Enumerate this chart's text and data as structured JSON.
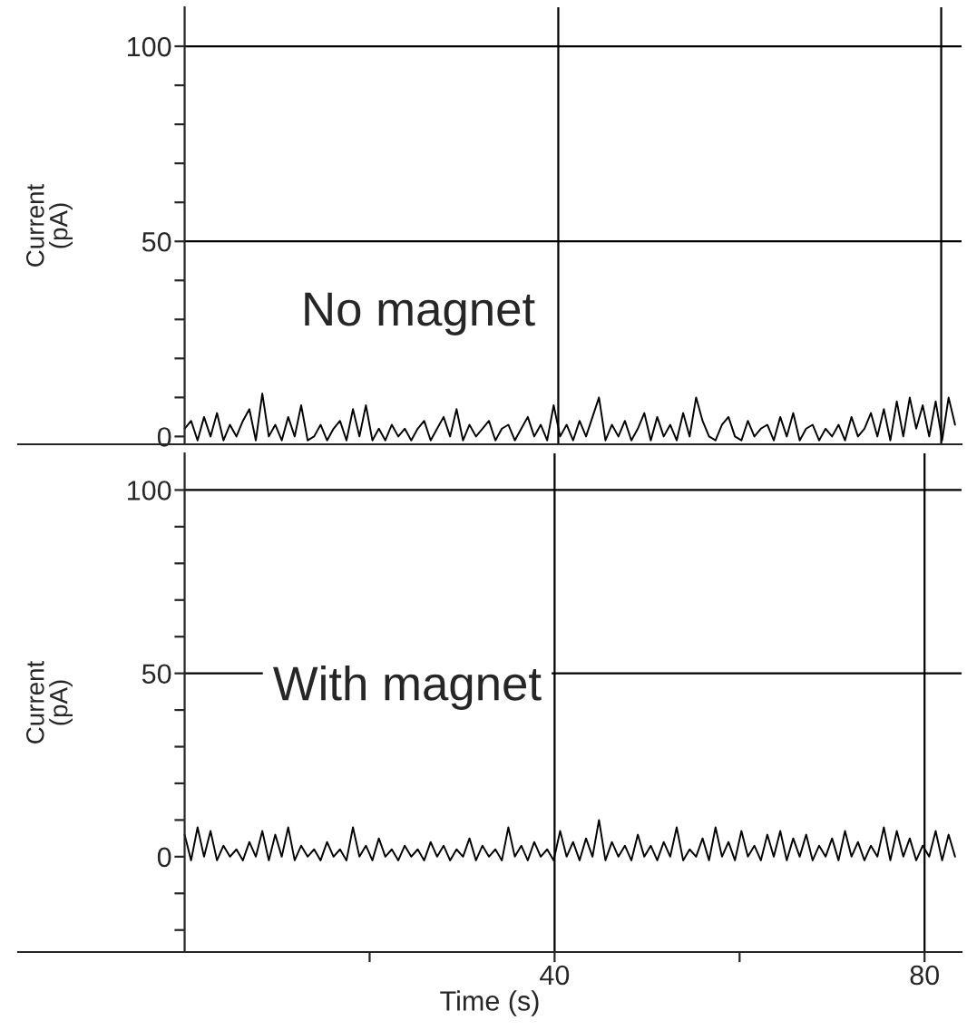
{
  "chart_data": [
    {
      "type": "line",
      "ylabel": "Current\n(pA)",
      "annotations": [
        "No magnet"
      ],
      "tick_labels": "y",
      "xlim": [
        -18,
        84
      ],
      "ylim": [
        -2,
        110
      ],
      "yticks": [
        0,
        {
          "value": 10,
          "label": null
        },
        {
          "value": 20,
          "label": null
        },
        {
          "value": 30,
          "label": null
        },
        {
          "value": 40,
          "label": null
        },
        50,
        {
          "value": 60,
          "label": null
        },
        {
          "value": 70,
          "label": null
        },
        {
          "value": 80,
          "label": null
        },
        {
          "value": 90,
          "label": null
        },
        100
      ],
      "ref_lines": [
        {
          "axis": "y",
          "value": 50,
          "color": "#000000"
        },
        {
          "axis": "y",
          "value": 100,
          "color": "#000000"
        },
        {
          "axis": "x",
          "value": 40.4,
          "color": "#000000"
        },
        {
          "axis": "x",
          "value": 81.8,
          "color": "#000000"
        }
      ],
      "x": [
        0,
        0.7,
        1.4,
        2.1,
        2.8,
        3.5,
        4.2,
        4.9,
        5.6,
        6.3,
        7,
        7.7,
        8.4,
        9.1,
        9.8,
        10.5,
        11.2,
        11.9,
        12.6,
        13.3,
        14,
        14.7,
        15.4,
        16.1,
        16.8,
        17.5,
        18.2,
        18.9,
        19.6,
        20.3,
        21,
        21.7,
        22.4,
        23.1,
        23.8,
        24.5,
        25.2,
        25.9,
        26.6,
        27.3,
        28,
        28.7,
        29.4,
        30.1,
        30.8,
        31.5,
        32.2,
        32.9,
        33.6,
        34.3,
        35,
        35.7,
        36.4,
        37.1,
        37.8,
        38.5,
        39.2,
        39.9,
        40.6,
        41.3,
        42,
        42.7,
        43.4,
        44.1,
        44.8,
        45.5,
        46.2,
        46.9,
        47.6,
        48.3,
        49,
        49.7,
        50.4,
        51.1,
        51.8,
        52.5,
        53.2,
        53.9,
        54.6,
        55.3,
        56,
        56.7,
        57.4,
        58.1,
        58.8,
        59.5,
        60.2,
        60.9,
        61.6,
        62.3,
        63,
        63.7,
        64.4,
        65.1,
        65.8,
        66.5,
        67.2,
        67.9,
        68.6,
        69.3,
        70,
        70.7,
        71.4,
        72.1,
        72.8,
        73.5,
        74.2,
        74.9,
        75.6,
        76.3,
        77,
        77.7,
        78.4,
        79.1,
        79.8,
        80.5,
        81.2,
        81.9,
        82.6,
        83.3
      ],
      "series": [
        {
          "color": "#000000",
          "values": [
            2,
            4,
            -1,
            5,
            0,
            6,
            -1,
            3,
            0,
            4,
            7,
            -1,
            11,
            0,
            3,
            -1,
            5,
            0,
            8,
            -1,
            0,
            3,
            -1,
            2,
            4,
            -1,
            7,
            0,
            8,
            -1,
            2,
            -1,
            3,
            0,
            2,
            -1,
            2,
            4,
            -1,
            2,
            5,
            0,
            7,
            -1,
            3,
            0,
            2,
            4,
            -1,
            2,
            3,
            -1,
            2,
            5,
            0,
            3,
            -1,
            8,
            0,
            3,
            -1,
            4,
            0,
            5,
            10,
            -1,
            3,
            0,
            4,
            -1,
            2,
            6,
            -1,
            5,
            0,
            3,
            -1,
            6,
            0,
            10,
            4,
            0,
            -1,
            3,
            5,
            0,
            -1,
            4,
            0,
            2,
            3,
            -1,
            5,
            0,
            6,
            -1,
            2,
            3,
            -1,
            2,
            0,
            3,
            -1,
            5,
            0,
            2,
            6,
            0,
            7,
            -1,
            9,
            0,
            10,
            2,
            8,
            0,
            9,
            -1,
            10,
            3
          ]
        }
      ]
    },
    {
      "type": "line",
      "ylabel": "Current\n(pA)",
      "xlabel": "Time (s)",
      "annotations": [
        "With magnet"
      ],
      "xlim": [
        -18,
        84
      ],
      "xticks": [
        {
          "value": 20,
          "label": null
        },
        40,
        {
          "value": 60,
          "label": null
        },
        80
      ],
      "ylim": [
        -26,
        110
      ],
      "yticks": [
        {
          "value": -20,
          "label": null
        },
        {
          "value": -10,
          "label": null
        },
        0,
        {
          "value": 10,
          "label": null
        },
        {
          "value": 20,
          "label": null
        },
        {
          "value": 30,
          "label": null
        },
        {
          "value": 40,
          "label": null
        },
        50,
        {
          "value": 60,
          "label": null
        },
        {
          "value": 70,
          "label": null
        },
        {
          "value": 80,
          "label": null
        },
        {
          "value": 90,
          "label": null
        },
        100
      ],
      "ref_lines": [
        {
          "axis": "y",
          "value": 50,
          "color": "#000000"
        },
        {
          "axis": "y",
          "value": 100,
          "color": "#000000"
        },
        {
          "axis": "x",
          "value": 40,
          "color": "#000000"
        },
        {
          "axis": "x",
          "value": 80,
          "color": "#000000"
        }
      ],
      "x": [
        0,
        0.7,
        1.4,
        2.1,
        2.8,
        3.5,
        4.2,
        4.9,
        5.6,
        6.3,
        7,
        7.7,
        8.4,
        9.1,
        9.8,
        10.5,
        11.2,
        11.9,
        12.6,
        13.3,
        14,
        14.7,
        15.4,
        16.1,
        16.8,
        17.5,
        18.2,
        18.9,
        19.6,
        20.3,
        21,
        21.7,
        22.4,
        23.1,
        23.8,
        24.5,
        25.2,
        25.9,
        26.6,
        27.3,
        28,
        28.7,
        29.4,
        30.1,
        30.8,
        31.5,
        32.2,
        32.9,
        33.6,
        34.3,
        35,
        35.7,
        36.4,
        37.1,
        37.8,
        38.5,
        39.2,
        39.9,
        40.6,
        41.3,
        42,
        42.7,
        43.4,
        44.1,
        44.8,
        45.5,
        46.2,
        46.9,
        47.6,
        48.3,
        49,
        49.7,
        50.4,
        51.1,
        51.8,
        52.5,
        53.2,
        53.9,
        54.6,
        55.3,
        56,
        56.7,
        57.4,
        58.1,
        58.8,
        59.5,
        60.2,
        60.9,
        61.6,
        62.3,
        63,
        63.7,
        64.4,
        65.1,
        65.8,
        66.5,
        67.2,
        67.9,
        68.6,
        69.3,
        70,
        70.7,
        71.4,
        72.1,
        72.8,
        73.5,
        74.2,
        74.9,
        75.6,
        76.3,
        77,
        77.7,
        78.4,
        79.1,
        79.8,
        80.5,
        81.2,
        81.9,
        82.6,
        83.3
      ],
      "series": [
        {
          "color": "#000000",
          "values": [
            6,
            -1,
            8,
            0,
            7,
            -1,
            3,
            0,
            2,
            -1,
            4,
            0,
            7,
            -1,
            6,
            0,
            8,
            -1,
            3,
            0,
            2,
            -1,
            4,
            0,
            2,
            -1,
            8,
            0,
            3,
            -1,
            5,
            0,
            2,
            -1,
            3,
            0,
            2,
            -1,
            4,
            0,
            3,
            -1,
            2,
            0,
            5,
            -1,
            3,
            0,
            2,
            -1,
            8,
            0,
            3,
            -1,
            4,
            0,
            2,
            -1,
            7,
            0,
            4,
            -1,
            5,
            0,
            10,
            -1,
            4,
            0,
            3,
            -1,
            6,
            0,
            3,
            -1,
            4,
            0,
            8,
            -1,
            2,
            0,
            5,
            -1,
            8,
            0,
            4,
            -1,
            7,
            0,
            3,
            -1,
            6,
            0,
            7,
            -1,
            5,
            0,
            6,
            -1,
            3,
            0,
            5,
            -1,
            7,
            0,
            4,
            -1,
            3,
            0,
            8,
            -1,
            7,
            0,
            5,
            -1,
            3,
            0,
            7,
            -1,
            6,
            0
          ]
        }
      ]
    }
  ]
}
